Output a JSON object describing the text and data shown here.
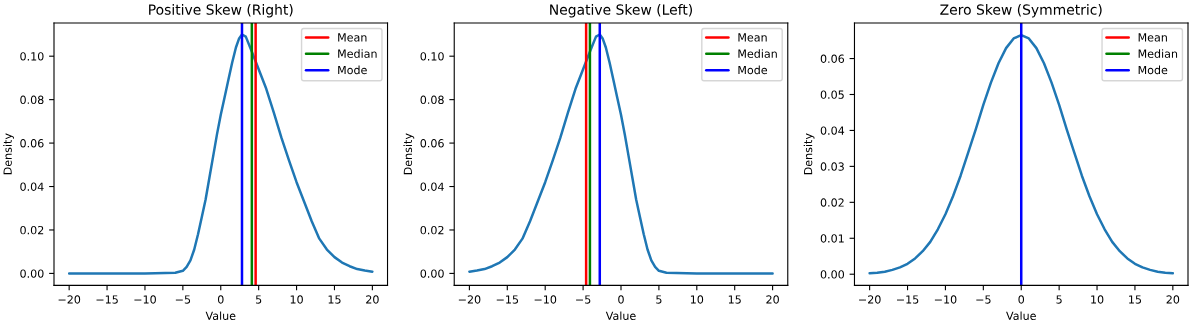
{
  "chart_data": [
    {
      "type": "line",
      "title": "Positive Skew (Right)",
      "xlabel": "Value",
      "ylabel": "Density",
      "xlim": [
        -22,
        22
      ],
      "ylim": [
        -0.0055,
        0.1153
      ],
      "xticks": [
        {
          "value": -20,
          "label": "−20"
        },
        {
          "value": -15,
          "label": "−15"
        },
        {
          "value": -10,
          "label": "−10"
        },
        {
          "value": -5,
          "label": "−5"
        },
        0,
        5,
        10,
        15,
        20
      ],
      "yticks": [
        {
          "value": 0,
          "label": "0.00"
        },
        {
          "value": 0.02,
          "label": "0.02"
        },
        {
          "value": 0.04,
          "label": "0.04"
        },
        {
          "value": 0.06,
          "label": "0.06"
        },
        {
          "value": 0.08,
          "label": "0.08"
        },
        {
          "value": 0.1,
          "label": "0.10"
        }
      ],
      "grid": false,
      "legend": "top right",
      "series": [
        {
          "color": "#1f77b4",
          "x": [
            -20,
            -10,
            -6,
            -5,
            -4.5,
            -4,
            -3.5,
            -3,
            -2.5,
            -2,
            -1.5,
            -1,
            -0.5,
            0,
            0.5,
            1,
            1.5,
            2,
            2.4,
            2.8,
            3.3,
            4,
            5,
            6,
            7,
            8,
            9,
            10,
            11,
            12,
            13,
            14,
            15,
            16,
            17,
            18,
            19,
            20
          ],
          "values": [
            0,
            0,
            0.0003,
            0.0012,
            0.003,
            0.006,
            0.011,
            0.018,
            0.026,
            0.034,
            0.044,
            0.054,
            0.064,
            0.073,
            0.081,
            0.089,
            0.097,
            0.104,
            0.108,
            0.11,
            0.109,
            0.103,
            0.094,
            0.085,
            0.074,
            0.0625,
            0.052,
            0.042,
            0.033,
            0.024,
            0.016,
            0.011,
            0.0075,
            0.005,
            0.0033,
            0.002,
            0.0013,
            0.0008
          ]
        },
        {
          "name": "Mean",
          "color": "#ff0000",
          "x": [
            4.6,
            4.6
          ],
          "values": [
            -0.0055,
            0.1153
          ]
        },
        {
          "name": "Median",
          "color": "#008000",
          "x": [
            4.1,
            4.1
          ],
          "values": [
            -0.0055,
            0.1153
          ]
        },
        {
          "name": "Mode",
          "color": "#0000ff",
          "x": [
            2.8,
            2.8
          ],
          "values": [
            -0.0055,
            0.1153
          ]
        }
      ]
    },
    {
      "type": "line",
      "title": "Negative Skew (Left)",
      "xlabel": "Value",
      "ylabel": "Density",
      "xlim": [
        -22,
        22
      ],
      "ylim": [
        -0.0055,
        0.1153
      ],
      "xticks": [
        {
          "value": -20,
          "label": "−20"
        },
        {
          "value": -15,
          "label": "−15"
        },
        {
          "value": -10,
          "label": "−10"
        },
        {
          "value": -5,
          "label": "−5"
        },
        0,
        5,
        10,
        15,
        20
      ],
      "yticks": [
        {
          "value": 0,
          "label": "0.00"
        },
        {
          "value": 0.02,
          "label": "0.02"
        },
        {
          "value": 0.04,
          "label": "0.04"
        },
        {
          "value": 0.06,
          "label": "0.06"
        },
        {
          "value": 0.08,
          "label": "0.08"
        },
        {
          "value": 0.1,
          "label": "0.10"
        }
      ],
      "grid": false,
      "legend": "top right",
      "series": [
        {
          "color": "#1f77b4",
          "x": [
            -20,
            -19,
            -18,
            -17,
            -16,
            -15,
            -14,
            -13,
            -12,
            -11,
            -10,
            -9,
            -8,
            -7,
            -6,
            -5,
            -4,
            -3.3,
            -2.8,
            -2.4,
            -2,
            -1.5,
            -1,
            -0.5,
            0,
            0.5,
            1,
            1.5,
            2,
            2.5,
            3,
            3.5,
            4,
            4.5,
            5,
            6,
            10,
            20
          ],
          "values": [
            0.0008,
            0.0013,
            0.002,
            0.0033,
            0.005,
            0.0075,
            0.011,
            0.016,
            0.024,
            0.033,
            0.042,
            0.052,
            0.0625,
            0.074,
            0.085,
            0.094,
            0.103,
            0.109,
            0.11,
            0.108,
            0.104,
            0.097,
            0.089,
            0.081,
            0.073,
            0.064,
            0.054,
            0.044,
            0.034,
            0.026,
            0.018,
            0.011,
            0.006,
            0.003,
            0.0012,
            0.0003,
            0,
            0
          ]
        },
        {
          "name": "Mean",
          "color": "#ff0000",
          "x": [
            -4.6,
            -4.6
          ],
          "values": [
            -0.0055,
            0.1153
          ]
        },
        {
          "name": "Median",
          "color": "#008000",
          "x": [
            -4.1,
            -4.1
          ],
          "values": [
            -0.0055,
            0.1153
          ]
        },
        {
          "name": "Mode",
          "color": "#0000ff",
          "x": [
            -2.8,
            -2.8
          ],
          "values": [
            -0.0055,
            0.1153
          ]
        }
      ]
    },
    {
      "type": "line",
      "title": "Zero Skew (Symmetric)",
      "xlabel": "Value",
      "ylabel": "Density",
      "xlim": [
        -22,
        22
      ],
      "ylim": [
        -0.0031,
        0.0699
      ],
      "xticks": [
        {
          "value": -20,
          "label": "−20"
        },
        {
          "value": -15,
          "label": "−15"
        },
        {
          "value": -10,
          "label": "−10"
        },
        {
          "value": -5,
          "label": "−5"
        },
        0,
        5,
        10,
        15,
        20
      ],
      "yticks": [
        {
          "value": 0,
          "label": "0.00"
        },
        {
          "value": 0.01,
          "label": "0.01"
        },
        {
          "value": 0.02,
          "label": "0.02"
        },
        {
          "value": 0.03,
          "label": "0.03"
        },
        {
          "value": 0.04,
          "label": "0.04"
        },
        {
          "value": 0.05,
          "label": "0.05"
        },
        {
          "value": 0.06,
          "label": "0.06"
        }
      ],
      "grid": false,
      "legend": "top right",
      "series": [
        {
          "color": "#1f77b4",
          "x": [
            -20,
            -19,
            -18,
            -17,
            -16,
            -15,
            -14,
            -13,
            -12,
            -11,
            -10,
            -9,
            -8,
            -7,
            -6,
            -5,
            -4,
            -3,
            -2,
            -1,
            0,
            1,
            2,
            3,
            4,
            5,
            6,
            7,
            8,
            9,
            10,
            11,
            12,
            13,
            14,
            15,
            16,
            17,
            18,
            19,
            20
          ],
          "values": [
            0.0003,
            0.0004,
            0.0007,
            0.0012,
            0.0019,
            0.0029,
            0.0044,
            0.0064,
            0.009,
            0.0125,
            0.0167,
            0.0217,
            0.0274,
            0.0338,
            0.0403,
            0.0471,
            0.0533,
            0.0587,
            0.0629,
            0.0656,
            0.0665,
            0.0656,
            0.0629,
            0.0587,
            0.0533,
            0.0471,
            0.0403,
            0.0338,
            0.0274,
            0.0217,
            0.0167,
            0.0125,
            0.009,
            0.0064,
            0.0044,
            0.0029,
            0.0019,
            0.0012,
            0.0007,
            0.0004,
            0.0003
          ]
        },
        {
          "name": "Mean",
          "color": "#ff0000",
          "x": [
            null,
            null
          ],
          "values": [
            null,
            null
          ]
        },
        {
          "name": "Median",
          "color": "#008000",
          "x": [
            null,
            null
          ],
          "values": [
            null,
            null
          ]
        },
        {
          "name": "Mode",
          "color": "#0000ff",
          "x": [
            0,
            0
          ],
          "values": [
            -0.0031,
            0.0699
          ]
        }
      ]
    }
  ]
}
